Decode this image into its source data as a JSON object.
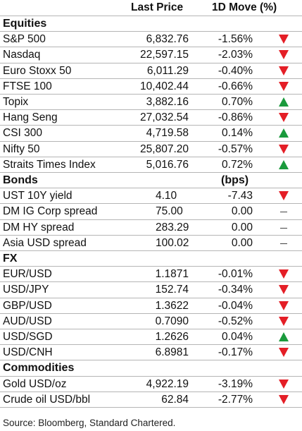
{
  "header": {
    "last_price": "Last Price",
    "move": "1D Move (%)"
  },
  "sections": [
    {
      "title": "Equities",
      "unit": "",
      "rows": [
        {
          "name": "S&P 500",
          "price": "6,832.76",
          "move": "-1.56%",
          "dir": "down"
        },
        {
          "name": "Nasdaq",
          "price": "22,597.15",
          "move": "-2.03%",
          "dir": "down"
        },
        {
          "name": "Euro Stoxx 50",
          "price": "6,011.29",
          "move": "-0.40%",
          "dir": "down"
        },
        {
          "name": "FTSE 100",
          "price": "10,402.44",
          "move": "-0.66%",
          "dir": "down"
        },
        {
          "name": "Topix",
          "price": "3,882.16",
          "move": "0.70%",
          "dir": "up"
        },
        {
          "name": "Hang Seng",
          "price": "27,032.54",
          "move": "-0.86%",
          "dir": "down"
        },
        {
          "name": "CSI 300",
          "price": "4,719.58",
          "move": "0.14%",
          "dir": "up"
        },
        {
          "name": "Nifty 50",
          "price": "25,807.20",
          "move": "-0.57%",
          "dir": "down"
        },
        {
          "name": "Straits Times Index",
          "price": "5,016.76",
          "move": "0.72%",
          "dir": "up"
        }
      ]
    },
    {
      "title": "Bonds",
      "unit": "(bps)",
      "rows": [
        {
          "name": "UST 10Y yield",
          "price": "4.10",
          "move": "-7.43",
          "dir": "down"
        },
        {
          "name": "DM IG Corp spread",
          "price": "75.00",
          "move": "0.00",
          "dir": "flat"
        },
        {
          "name": "DM HY spread",
          "price": "283.29",
          "move": "0.00",
          "dir": "flat"
        },
        {
          "name": "Asia USD spread",
          "price": "100.02",
          "move": "0.00",
          "dir": "flat"
        }
      ]
    },
    {
      "title": "FX",
      "unit": "",
      "rows": [
        {
          "name": "EUR/USD",
          "price": "1.1871",
          "move": "-0.01%",
          "dir": "down"
        },
        {
          "name": "USD/JPY",
          "price": "152.74",
          "move": "-0.34%",
          "dir": "down"
        },
        {
          "name": "GBP/USD",
          "price": "1.3622",
          "move": "-0.04%",
          "dir": "down"
        },
        {
          "name": "AUD/USD",
          "price": "0.7090",
          "move": "-0.52%",
          "dir": "down"
        },
        {
          "name": "USD/SGD",
          "price": "1.2626",
          "move": "0.04%",
          "dir": "up"
        },
        {
          "name": "USD/CNH",
          "price": "6.8981",
          "move": "-0.17%",
          "dir": "down"
        }
      ]
    },
    {
      "title": "Commodities",
      "unit": "",
      "rows": [
        {
          "name": "Gold USD/oz",
          "price": "4,922.19",
          "move": "-3.19%",
          "dir": "down"
        },
        {
          "name": "Crude oil USD/bbl",
          "price": "62.84",
          "move": "-2.77%",
          "dir": "down"
        }
      ]
    }
  ],
  "source": "Source: Bloomberg, Standard Chartered.",
  "colors": {
    "down": "#e41e26",
    "up": "#1a9a3c",
    "rule": "#b5b5b5"
  },
  "icons": {
    "down": "red-down-triangle-icon",
    "up": "green-up-triangle-icon",
    "flat": "flat-dash-icon"
  }
}
